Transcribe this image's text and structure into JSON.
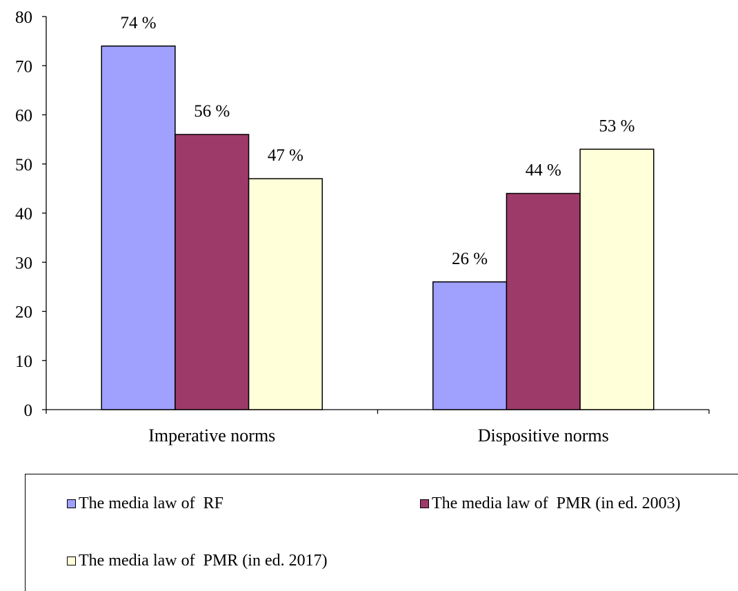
{
  "chart_data": {
    "type": "bar",
    "categories": [
      "Imperative norms",
      "Dispositive norms"
    ],
    "series": [
      {
        "name": "The media law of  RF",
        "values": [
          74,
          26
        ],
        "labels": [
          "74 %",
          "26 %"
        ],
        "color": "#a0a0ff"
      },
      {
        "name": "The media law of  PMR (in ed. 2003)",
        "values": [
          56,
          44
        ],
        "labels": [
          "56 %",
          "44 %"
        ],
        "color": "#9e3a6a"
      },
      {
        "name": "The media law of  PMR (in ed. 2017)",
        "values": [
          47,
          53
        ],
        "labels": [
          "47 %",
          "53 %"
        ],
        "color": "#ffffd9"
      }
    ],
    "ylim": [
      0,
      80
    ],
    "yticks": [
      0,
      10,
      20,
      30,
      40,
      50,
      60,
      70,
      80
    ],
    "grid": false,
    "legend_position": "bottom"
  }
}
